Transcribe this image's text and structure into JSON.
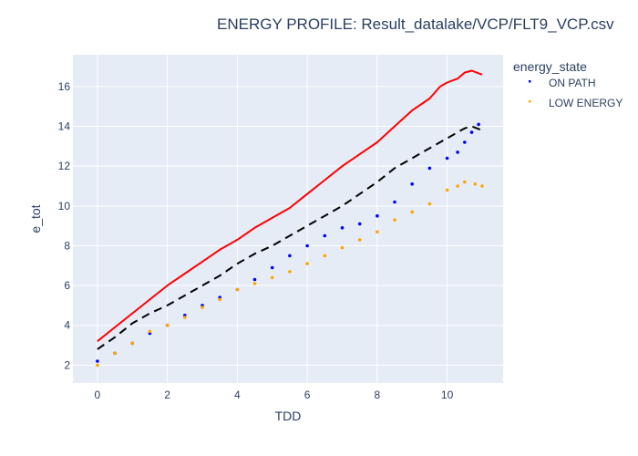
{
  "chart_data": {
    "type": "scatter",
    "title": "ENERGY PROFILE: Result_datalake/VCP/FLT9_VCP.csv",
    "xlabel": "TDD",
    "ylabel": "e_tot",
    "xlim": [
      -0.7,
      11.6
    ],
    "ylim": [
      1.1,
      17.6
    ],
    "xticks": [
      0,
      2,
      4,
      6,
      8,
      10
    ],
    "yticks": [
      2,
      4,
      6,
      8,
      10,
      12,
      14,
      16
    ],
    "grid": true,
    "legend": {
      "title": "energy_state",
      "placement": "top-right"
    },
    "series": [
      {
        "name": "ON PATH",
        "mode": "markers",
        "color": "#0000ff",
        "x": [
          0,
          0.5,
          1,
          1.5,
          2,
          2.5,
          3,
          3.5,
          4,
          4.5,
          5,
          5.5,
          6,
          6.5,
          7,
          7.5,
          8,
          8.5,
          9,
          9.5,
          10,
          10.3,
          10.5,
          10.7,
          10.9
        ],
        "y": [
          2.2,
          2.6,
          3.1,
          3.6,
          4.0,
          4.5,
          5.0,
          5.4,
          5.8,
          6.3,
          6.9,
          7.5,
          8.0,
          8.5,
          8.9,
          9.1,
          9.5,
          10.2,
          11.1,
          11.9,
          12.4,
          12.7,
          13.2,
          13.7,
          14.1
        ]
      },
      {
        "name": "LOW ENERGY",
        "mode": "markers",
        "color": "#ffa500",
        "x": [
          0,
          0.5,
          1,
          1.5,
          2,
          2.5,
          3,
          3.5,
          4,
          4.5,
          5,
          5.5,
          6,
          6.5,
          7,
          7.5,
          8,
          8.5,
          9,
          9.5,
          10,
          10.3,
          10.5,
          10.8,
          11
        ],
        "y": [
          2.0,
          2.6,
          3.1,
          3.7,
          4.0,
          4.4,
          4.9,
          5.3,
          5.8,
          6.1,
          6.4,
          6.7,
          7.1,
          7.5,
          7.9,
          8.3,
          8.7,
          9.3,
          9.7,
          10.1,
          10.8,
          11.0,
          11.2,
          11.1,
          11.0
        ]
      },
      {
        "mode": "lines",
        "color": "#ff0000",
        "dash": "solid",
        "x": [
          0,
          0.5,
          1,
          1.5,
          2,
          2.5,
          3,
          3.5,
          4,
          4.5,
          5,
          5.5,
          6,
          6.5,
          7,
          7.5,
          8,
          8.5,
          9,
          9.5,
          9.8,
          10,
          10.3,
          10.5,
          10.7,
          11
        ],
        "y": [
          3.2,
          3.9,
          4.6,
          5.3,
          6.0,
          6.6,
          7.2,
          7.8,
          8.3,
          8.9,
          9.4,
          9.9,
          10.6,
          11.3,
          12.0,
          12.6,
          13.2,
          14.0,
          14.8,
          15.4,
          16.0,
          16.2,
          16.4,
          16.7,
          16.8,
          16.6
        ]
      },
      {
        "mode": "lines",
        "color": "#000000",
        "dash": "dash",
        "x": [
          0,
          0.5,
          1,
          1.5,
          2,
          2.5,
          3,
          3.5,
          4,
          4.5,
          5,
          5.5,
          6,
          6.5,
          7,
          7.5,
          8,
          8.5,
          9,
          9.5,
          10,
          10.5,
          10.7,
          11
        ],
        "y": [
          2.8,
          3.4,
          4.1,
          4.6,
          5.0,
          5.5,
          6.0,
          6.5,
          7.1,
          7.6,
          8.0,
          8.5,
          9.0,
          9.5,
          10.0,
          10.6,
          11.2,
          11.9,
          12.4,
          12.9,
          13.4,
          13.9,
          14.0,
          13.8
        ]
      }
    ]
  }
}
